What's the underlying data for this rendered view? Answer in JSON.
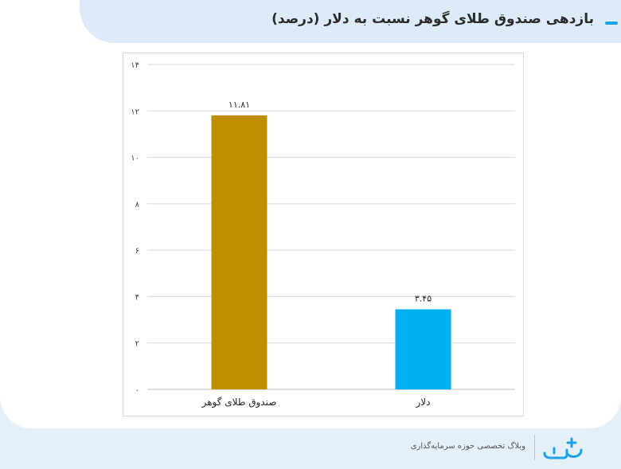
{
  "header": {
    "title": "بازدهی صندوق طلای گوهر نسبت به دلار (درصد)"
  },
  "footer": {
    "tagline": "وبلاگ تخصصی حوزه سرمایه‌گذاری",
    "logo_icon": "sarmayeh-logo-icon"
  },
  "colors": {
    "gold_bar": "#bf8f00",
    "dollar_bar": "#00b0f0",
    "accent": "#1aa3e6"
  },
  "chart_data": {
    "type": "bar",
    "title": "بازدهی صندوق طلای گوهر نسبت به دلار (درصد)",
    "xlabel": "",
    "ylabel": "",
    "ylim": [
      0,
      14
    ],
    "yticks": [
      0,
      2,
      4,
      6,
      8,
      10,
      12,
      14
    ],
    "ytick_labels": [
      "۰",
      "۲",
      "۴",
      "۶",
      "۸",
      "۱۰",
      "۱۲",
      "۱۴"
    ],
    "categories": [
      "صندوق طلای گوهر",
      "دلار"
    ],
    "values": [
      11.81,
      3.45
    ],
    "value_labels": [
      "۱۱.۸۱",
      "۳.۴۵"
    ],
    "bar_colors": [
      "#bf8f00",
      "#00b0f0"
    ],
    "grid": true,
    "legend": "none"
  }
}
